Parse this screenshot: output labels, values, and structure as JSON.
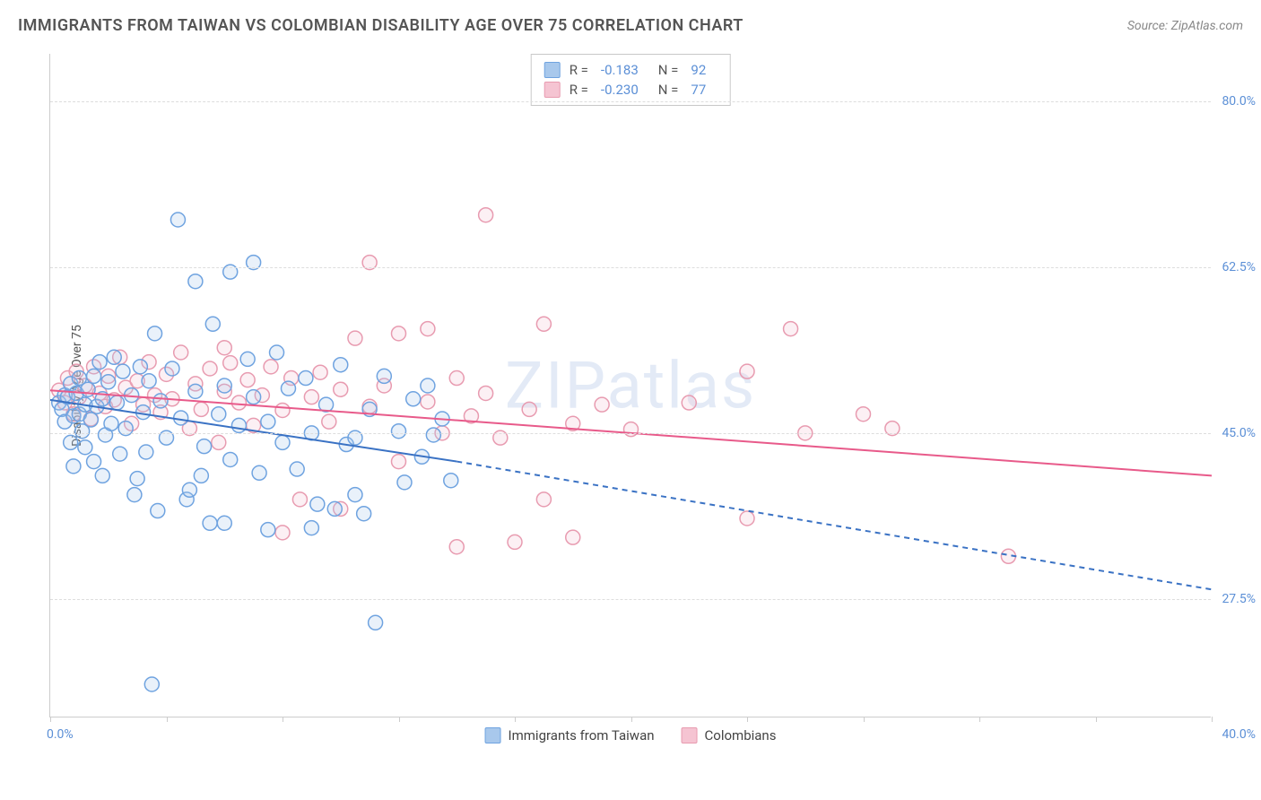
{
  "title": "IMMIGRANTS FROM TAIWAN VS COLOMBIAN DISABILITY AGE OVER 75 CORRELATION CHART",
  "source": "Source: ZipAtlas.com",
  "watermark": "ZIPatlas",
  "chart": {
    "type": "scatter",
    "ylabel": "Disability Age Over 75",
    "xlim": [
      0,
      40
    ],
    "ylim": [
      15,
      85
    ],
    "ytick_values": [
      27.5,
      45.0,
      62.5,
      80.0
    ],
    "ytick_labels": [
      "27.5%",
      "45.0%",
      "62.5%",
      "80.0%"
    ],
    "xlim_labels": [
      "0.0%",
      "40.0%"
    ],
    "x_tick_positions": [
      0,
      4,
      8,
      12,
      16,
      20,
      24,
      28,
      32,
      36,
      40
    ],
    "background_color": "#ffffff",
    "grid_color": "#dddddd",
    "axis_color": "#cccccc",
    "tick_label_color": "#5b8fd6",
    "ylabel_color": "#555555",
    "marker_radius": 8,
    "marker_stroke_width": 1.5,
    "marker_fill_opacity": 0.25,
    "line_width": 2
  },
  "series": [
    {
      "name": "Immigrants from Taiwan",
      "color_stroke": "#6fa3e0",
      "color_fill": "#a8c8ec",
      "line_color": "#3a72c4",
      "R": "-0.183",
      "N": "92",
      "trend": {
        "x1": 0,
        "y1": 48.5,
        "x2_solid": 14,
        "y2_solid": 42.0,
        "x2_dash": 40,
        "y2_dash": 28.5
      },
      "points": [
        [
          0.3,
          48.2
        ],
        [
          0.4,
          47.5
        ],
        [
          0.5,
          49.0
        ],
        [
          0.5,
          46.2
        ],
        [
          0.6,
          48.8
        ],
        [
          0.7,
          44.0
        ],
        [
          0.7,
          50.2
        ],
        [
          0.8,
          46.8
        ],
        [
          0.8,
          41.5
        ],
        [
          0.9,
          49.2
        ],
        [
          1.0,
          47.0
        ],
        [
          1.0,
          50.8
        ],
        [
          1.1,
          45.2
        ],
        [
          1.2,
          48.0
        ],
        [
          1.2,
          43.5
        ],
        [
          1.3,
          49.6
        ],
        [
          1.4,
          46.4
        ],
        [
          1.5,
          51.0
        ],
        [
          1.5,
          42.0
        ],
        [
          1.6,
          47.8
        ],
        [
          1.7,
          52.5
        ],
        [
          1.8,
          40.5
        ],
        [
          1.8,
          48.6
        ],
        [
          1.9,
          44.8
        ],
        [
          2.0,
          50.4
        ],
        [
          2.1,
          46.0
        ],
        [
          2.2,
          53.0
        ],
        [
          2.3,
          48.2
        ],
        [
          2.4,
          42.8
        ],
        [
          2.5,
          51.5
        ],
        [
          2.6,
          45.5
        ],
        [
          2.8,
          49.0
        ],
        [
          2.9,
          38.5
        ],
        [
          3.0,
          40.2
        ],
        [
          3.1,
          52.0
        ],
        [
          3.2,
          47.2
        ],
        [
          3.3,
          43.0
        ],
        [
          3.4,
          50.5
        ],
        [
          3.6,
          55.5
        ],
        [
          3.7,
          36.8
        ],
        [
          3.8,
          48.4
        ],
        [
          4.0,
          44.5
        ],
        [
          4.2,
          51.8
        ],
        [
          4.4,
          67.5
        ],
        [
          4.5,
          46.6
        ],
        [
          4.7,
          38.0
        ],
        [
          5.0,
          49.4
        ],
        [
          5.0,
          61.0
        ],
        [
          5.3,
          43.6
        ],
        [
          5.5,
          35.5
        ],
        [
          5.6,
          56.5
        ],
        [
          5.8,
          47.0
        ],
        [
          6.0,
          50.0
        ],
        [
          6.2,
          42.2
        ],
        [
          6.2,
          62.0
        ],
        [
          6.5,
          45.8
        ],
        [
          6.8,
          52.8
        ],
        [
          7.0,
          48.8
        ],
        [
          7.0,
          63.0
        ],
        [
          7.2,
          40.8
        ],
        [
          7.5,
          46.2
        ],
        [
          7.8,
          53.5
        ],
        [
          8.0,
          44.0
        ],
        [
          8.2,
          49.7
        ],
        [
          8.5,
          41.2
        ],
        [
          8.8,
          50.8
        ],
        [
          9.0,
          45.0
        ],
        [
          9.2,
          37.5
        ],
        [
          9.5,
          48.0
        ],
        [
          9.8,
          37.0
        ],
        [
          10.0,
          52.2
        ],
        [
          10.2,
          43.8
        ],
        [
          10.5,
          44.5
        ],
        [
          10.5,
          38.5
        ],
        [
          11.0,
          47.5
        ],
        [
          11.2,
          25.0
        ],
        [
          11.5,
          51.0
        ],
        [
          3.5,
          18.5
        ],
        [
          12.0,
          45.2
        ],
        [
          12.2,
          39.8
        ],
        [
          12.5,
          48.6
        ],
        [
          12.8,
          42.5
        ],
        [
          13.0,
          50.0
        ],
        [
          13.2,
          44.8
        ],
        [
          13.5,
          46.5
        ],
        [
          13.8,
          40.0
        ],
        [
          6.0,
          35.5
        ],
        [
          7.5,
          34.8
        ],
        [
          4.8,
          39.0
        ],
        [
          5.2,
          40.5
        ],
        [
          9.0,
          35.0
        ],
        [
          10.8,
          36.5
        ]
      ]
    },
    {
      "name": "Colombians",
      "color_stroke": "#e89bb0",
      "color_fill": "#f5c4d2",
      "line_color": "#e85a8a",
      "R": "-0.230",
      "N": "77",
      "trend": {
        "x1": 0,
        "y1": 49.5,
        "x2_solid": 40,
        "y2_solid": 40.5,
        "x2_dash": 40,
        "y2_dash": 40.5
      },
      "points": [
        [
          0.3,
          49.5
        ],
        [
          0.5,
          48.2
        ],
        [
          0.6,
          50.8
        ],
        [
          0.8,
          47.0
        ],
        [
          0.9,
          51.5
        ],
        [
          1.0,
          48.8
        ],
        [
          1.2,
          50.0
        ],
        [
          1.4,
          46.5
        ],
        [
          1.5,
          52.0
        ],
        [
          1.7,
          49.2
        ],
        [
          1.9,
          47.8
        ],
        [
          2.0,
          51.0
        ],
        [
          2.2,
          48.5
        ],
        [
          2.4,
          53.0
        ],
        [
          2.6,
          49.8
        ],
        [
          2.8,
          46.0
        ],
        [
          3.0,
          50.5
        ],
        [
          3.2,
          48.0
        ],
        [
          3.4,
          52.5
        ],
        [
          3.6,
          49.0
        ],
        [
          3.8,
          47.2
        ],
        [
          4.0,
          51.2
        ],
        [
          4.2,
          48.6
        ],
        [
          4.5,
          53.5
        ],
        [
          4.8,
          45.5
        ],
        [
          5.0,
          50.2
        ],
        [
          5.2,
          47.5
        ],
        [
          5.5,
          51.8
        ],
        [
          5.8,
          44.0
        ],
        [
          6.0,
          49.4
        ],
        [
          6.2,
          52.4
        ],
        [
          6.5,
          48.2
        ],
        [
          6.8,
          50.6
        ],
        [
          7.0,
          45.8
        ],
        [
          7.3,
          49.0
        ],
        [
          7.6,
          52.0
        ],
        [
          8.0,
          47.4
        ],
        [
          8.3,
          50.8
        ],
        [
          8.6,
          38.0
        ],
        [
          9.0,
          48.8
        ],
        [
          9.3,
          51.4
        ],
        [
          9.6,
          46.2
        ],
        [
          10.0,
          49.6
        ],
        [
          10.5,
          55.0
        ],
        [
          11.0,
          47.8
        ],
        [
          11.0,
          63.0
        ],
        [
          11.5,
          50.0
        ],
        [
          12.0,
          42.0
        ],
        [
          12.0,
          55.5
        ],
        [
          13.0,
          48.3
        ],
        [
          13.0,
          56.0
        ],
        [
          13.5,
          45.0
        ],
        [
          14.0,
          50.8
        ],
        [
          14.0,
          33.0
        ],
        [
          14.5,
          46.8
        ],
        [
          15.0,
          49.2
        ],
        [
          15.0,
          68.0
        ],
        [
          15.5,
          44.5
        ],
        [
          16.0,
          33.5
        ],
        [
          16.5,
          47.5
        ],
        [
          17.0,
          56.5
        ],
        [
          17.0,
          38.0
        ],
        [
          18.0,
          34.0
        ],
        [
          18.0,
          46.0
        ],
        [
          19.0,
          48.0
        ],
        [
          20.0,
          45.4
        ],
        [
          22.0,
          48.2
        ],
        [
          24.0,
          36.0
        ],
        [
          24.0,
          51.5
        ],
        [
          25.5,
          56.0
        ],
        [
          26.0,
          45.0
        ],
        [
          28.0,
          47.0
        ],
        [
          29.0,
          45.5
        ],
        [
          33.0,
          32.0
        ],
        [
          10.0,
          37.0
        ],
        [
          8.0,
          34.5
        ],
        [
          6.0,
          54.0
        ]
      ]
    }
  ],
  "legend": {
    "stat_label_R": "R =",
    "stat_label_N": "N ="
  }
}
